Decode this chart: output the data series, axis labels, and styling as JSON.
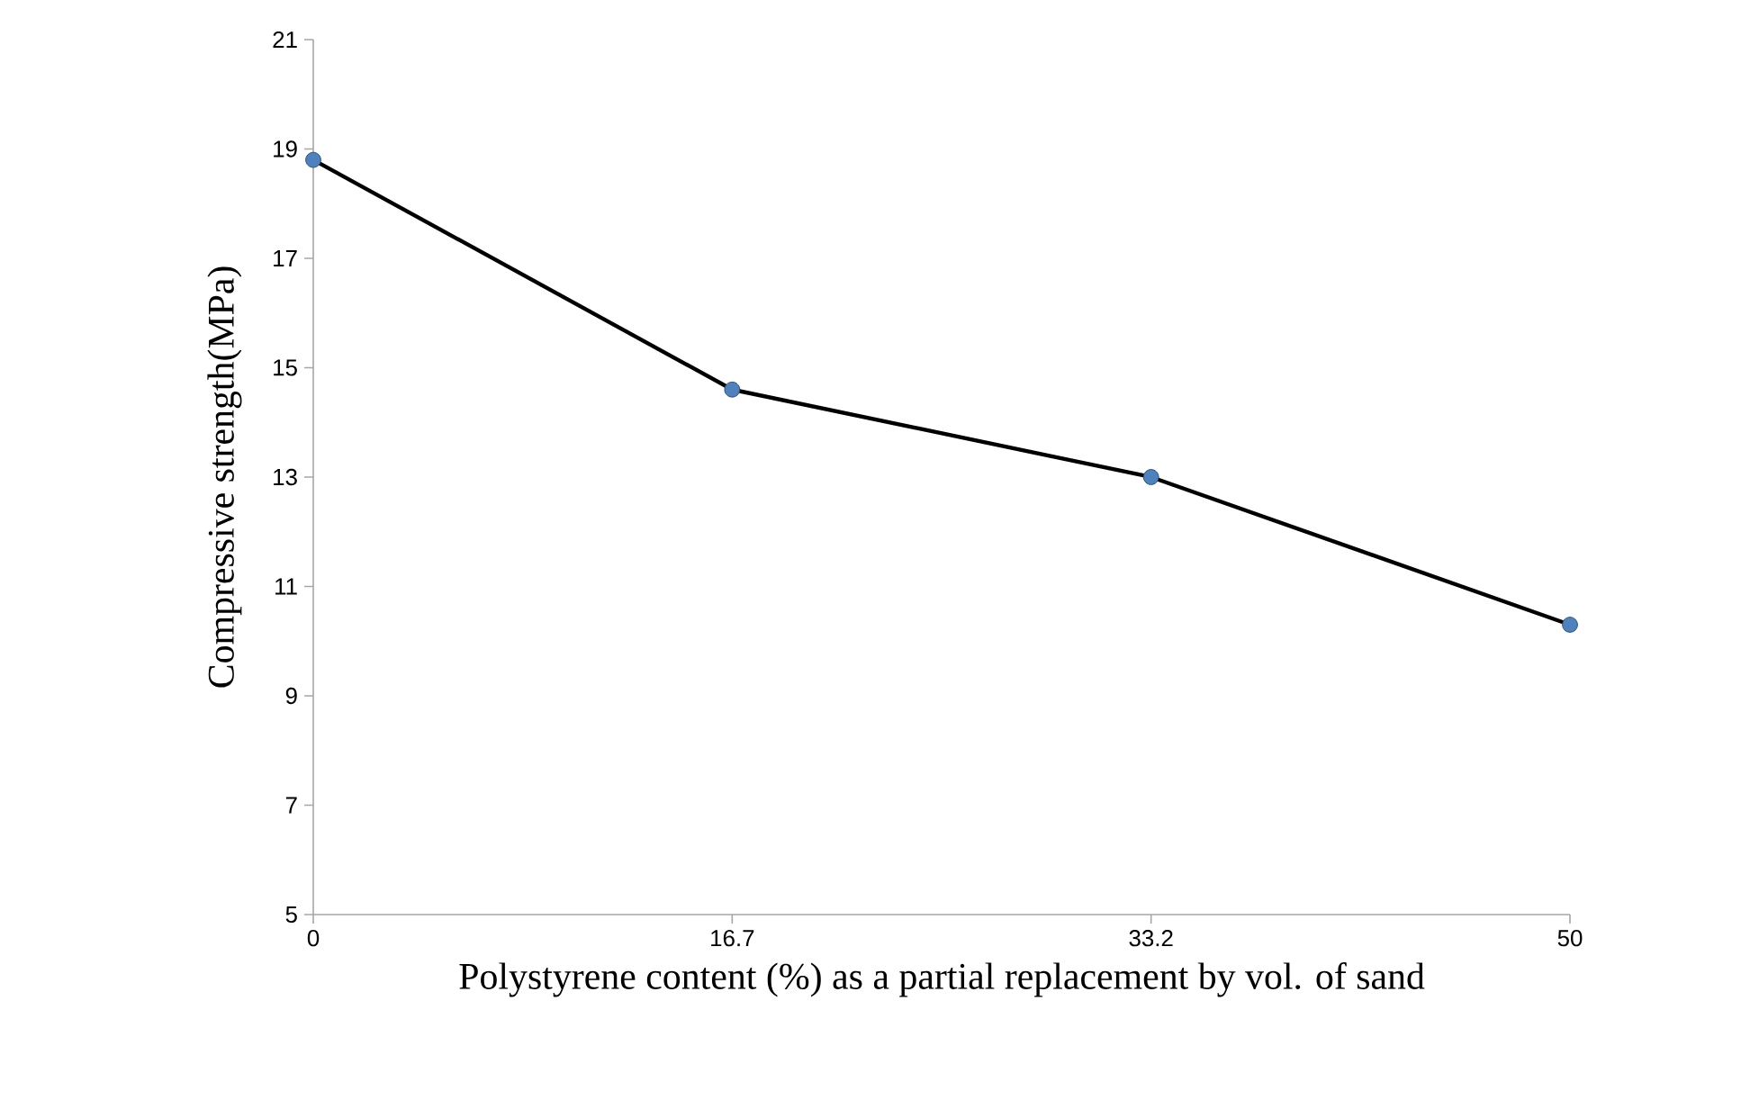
{
  "chart_data": {
    "type": "line",
    "xlabel": "Polystyrene content (%) as a partial replacement by vol. of sand",
    "ylabel": "Compressive strength(MPa)",
    "categories": [
      "0",
      "16.7",
      "33.2",
      "50"
    ],
    "series": [
      {
        "color": "#000000",
        "values": [
          18.8,
          14.6,
          13.0,
          10.3
        ]
      }
    ],
    "ylim": [
      5,
      21
    ],
    "yticks": [
      5,
      7,
      9,
      11,
      13,
      15,
      17,
      19,
      21
    ],
    "grid": false,
    "marker": "circle",
    "line_style": "solid"
  }
}
